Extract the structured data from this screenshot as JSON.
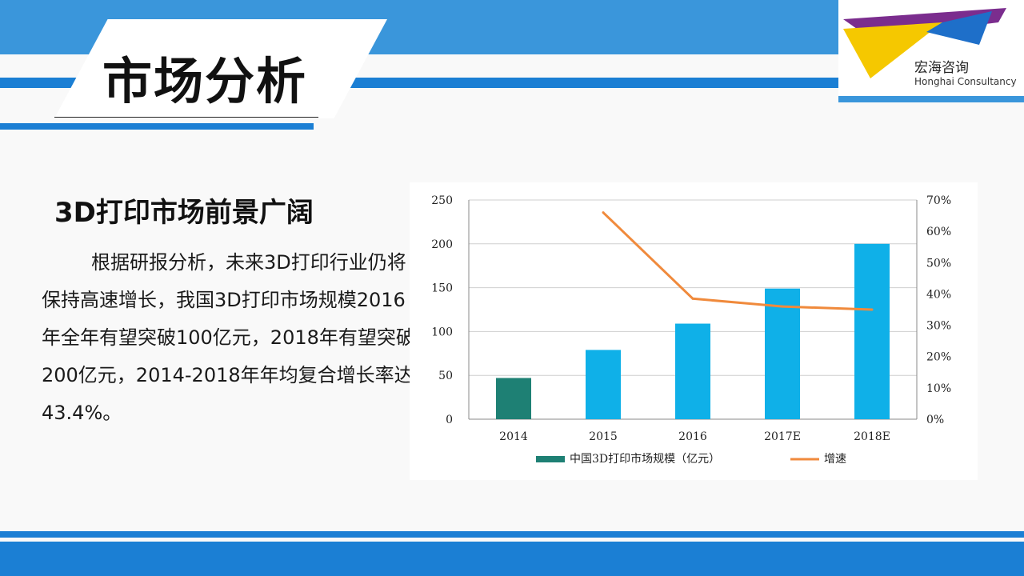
{
  "header": {
    "title": "市场分析"
  },
  "logo": {
    "name": "宏海咨询",
    "subtitle": "Honghai Consultancy"
  },
  "content": {
    "heading": "3D打印市场前景广阔",
    "body": "根据研报分析，未来3D打印行业仍将保持高速增长，我国3D打印市场规模2016年全年有望突破100亿元，2018年有望突破200亿元，2014-2018年年均复合增长率达43.4%。"
  },
  "chart_data": {
    "type": "bar",
    "categories": [
      "2014",
      "2015",
      "2016",
      "2017E",
      "2018E"
    ],
    "series": [
      {
        "name": "中国3D打印市场规模（亿元）",
        "type": "bar",
        "axis": "left",
        "values": [
          47,
          79,
          109,
          149,
          200
        ],
        "colors": [
          "#1e8074",
          "#0fb0e8",
          "#0fb0e8",
          "#0fb0e8",
          "#0fb0e8"
        ]
      },
      {
        "name": "增速",
        "type": "line",
        "axis": "right",
        "values": [
          null,
          66,
          38.5,
          36,
          35
        ],
        "color": "#f08a3c"
      }
    ],
    "ylim": [
      0,
      250
    ],
    "yticks": [
      "0",
      "50",
      "100",
      "150",
      "200",
      "250"
    ],
    "y2lim": [
      0,
      70
    ],
    "y2ticks": [
      "0%",
      "10%",
      "20%",
      "30%",
      "40%",
      "50%",
      "60%",
      "70%"
    ],
    "legend_position": "bottom",
    "grid": "horizontal"
  }
}
